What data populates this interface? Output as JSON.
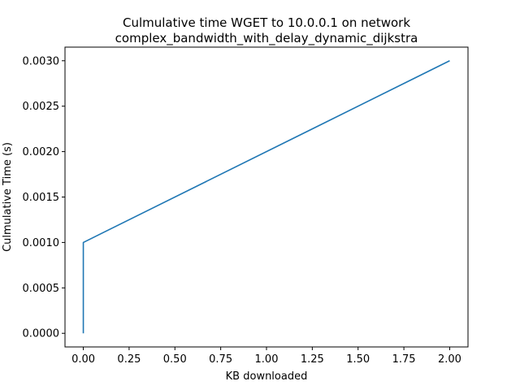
{
  "chart_data": {
    "type": "line",
    "title": "Culmulative time WGET to 10.0.0.1 on network",
    "subtitle": "complex_bandwidth_with_delay_dynamic_dijkstra",
    "xlabel": "KB downloaded",
    "ylabel": "Culmulative Time (s)",
    "xlim": [
      -0.1,
      2.1
    ],
    "ylim": [
      -0.00015,
      0.00315
    ],
    "xticks": [
      0.0,
      0.25,
      0.5,
      0.75,
      1.0,
      1.25,
      1.5,
      1.75,
      2.0
    ],
    "xtick_labels": [
      "0.00",
      "0.25",
      "0.50",
      "0.75",
      "1.00",
      "1.25",
      "1.50",
      "1.75",
      "2.00"
    ],
    "yticks": [
      0.0,
      0.0005,
      0.001,
      0.0015,
      0.002,
      0.0025,
      0.003
    ],
    "ytick_labels": [
      "0.0000",
      "0.0005",
      "0.0010",
      "0.0015",
      "0.0020",
      "0.0025",
      "0.0030"
    ],
    "grid": false,
    "series": [
      {
        "color": "#1f77b4",
        "x": [
          0.0,
          0.0,
          2.0
        ],
        "y": [
          0.0,
          0.001,
          0.003
        ]
      }
    ]
  }
}
